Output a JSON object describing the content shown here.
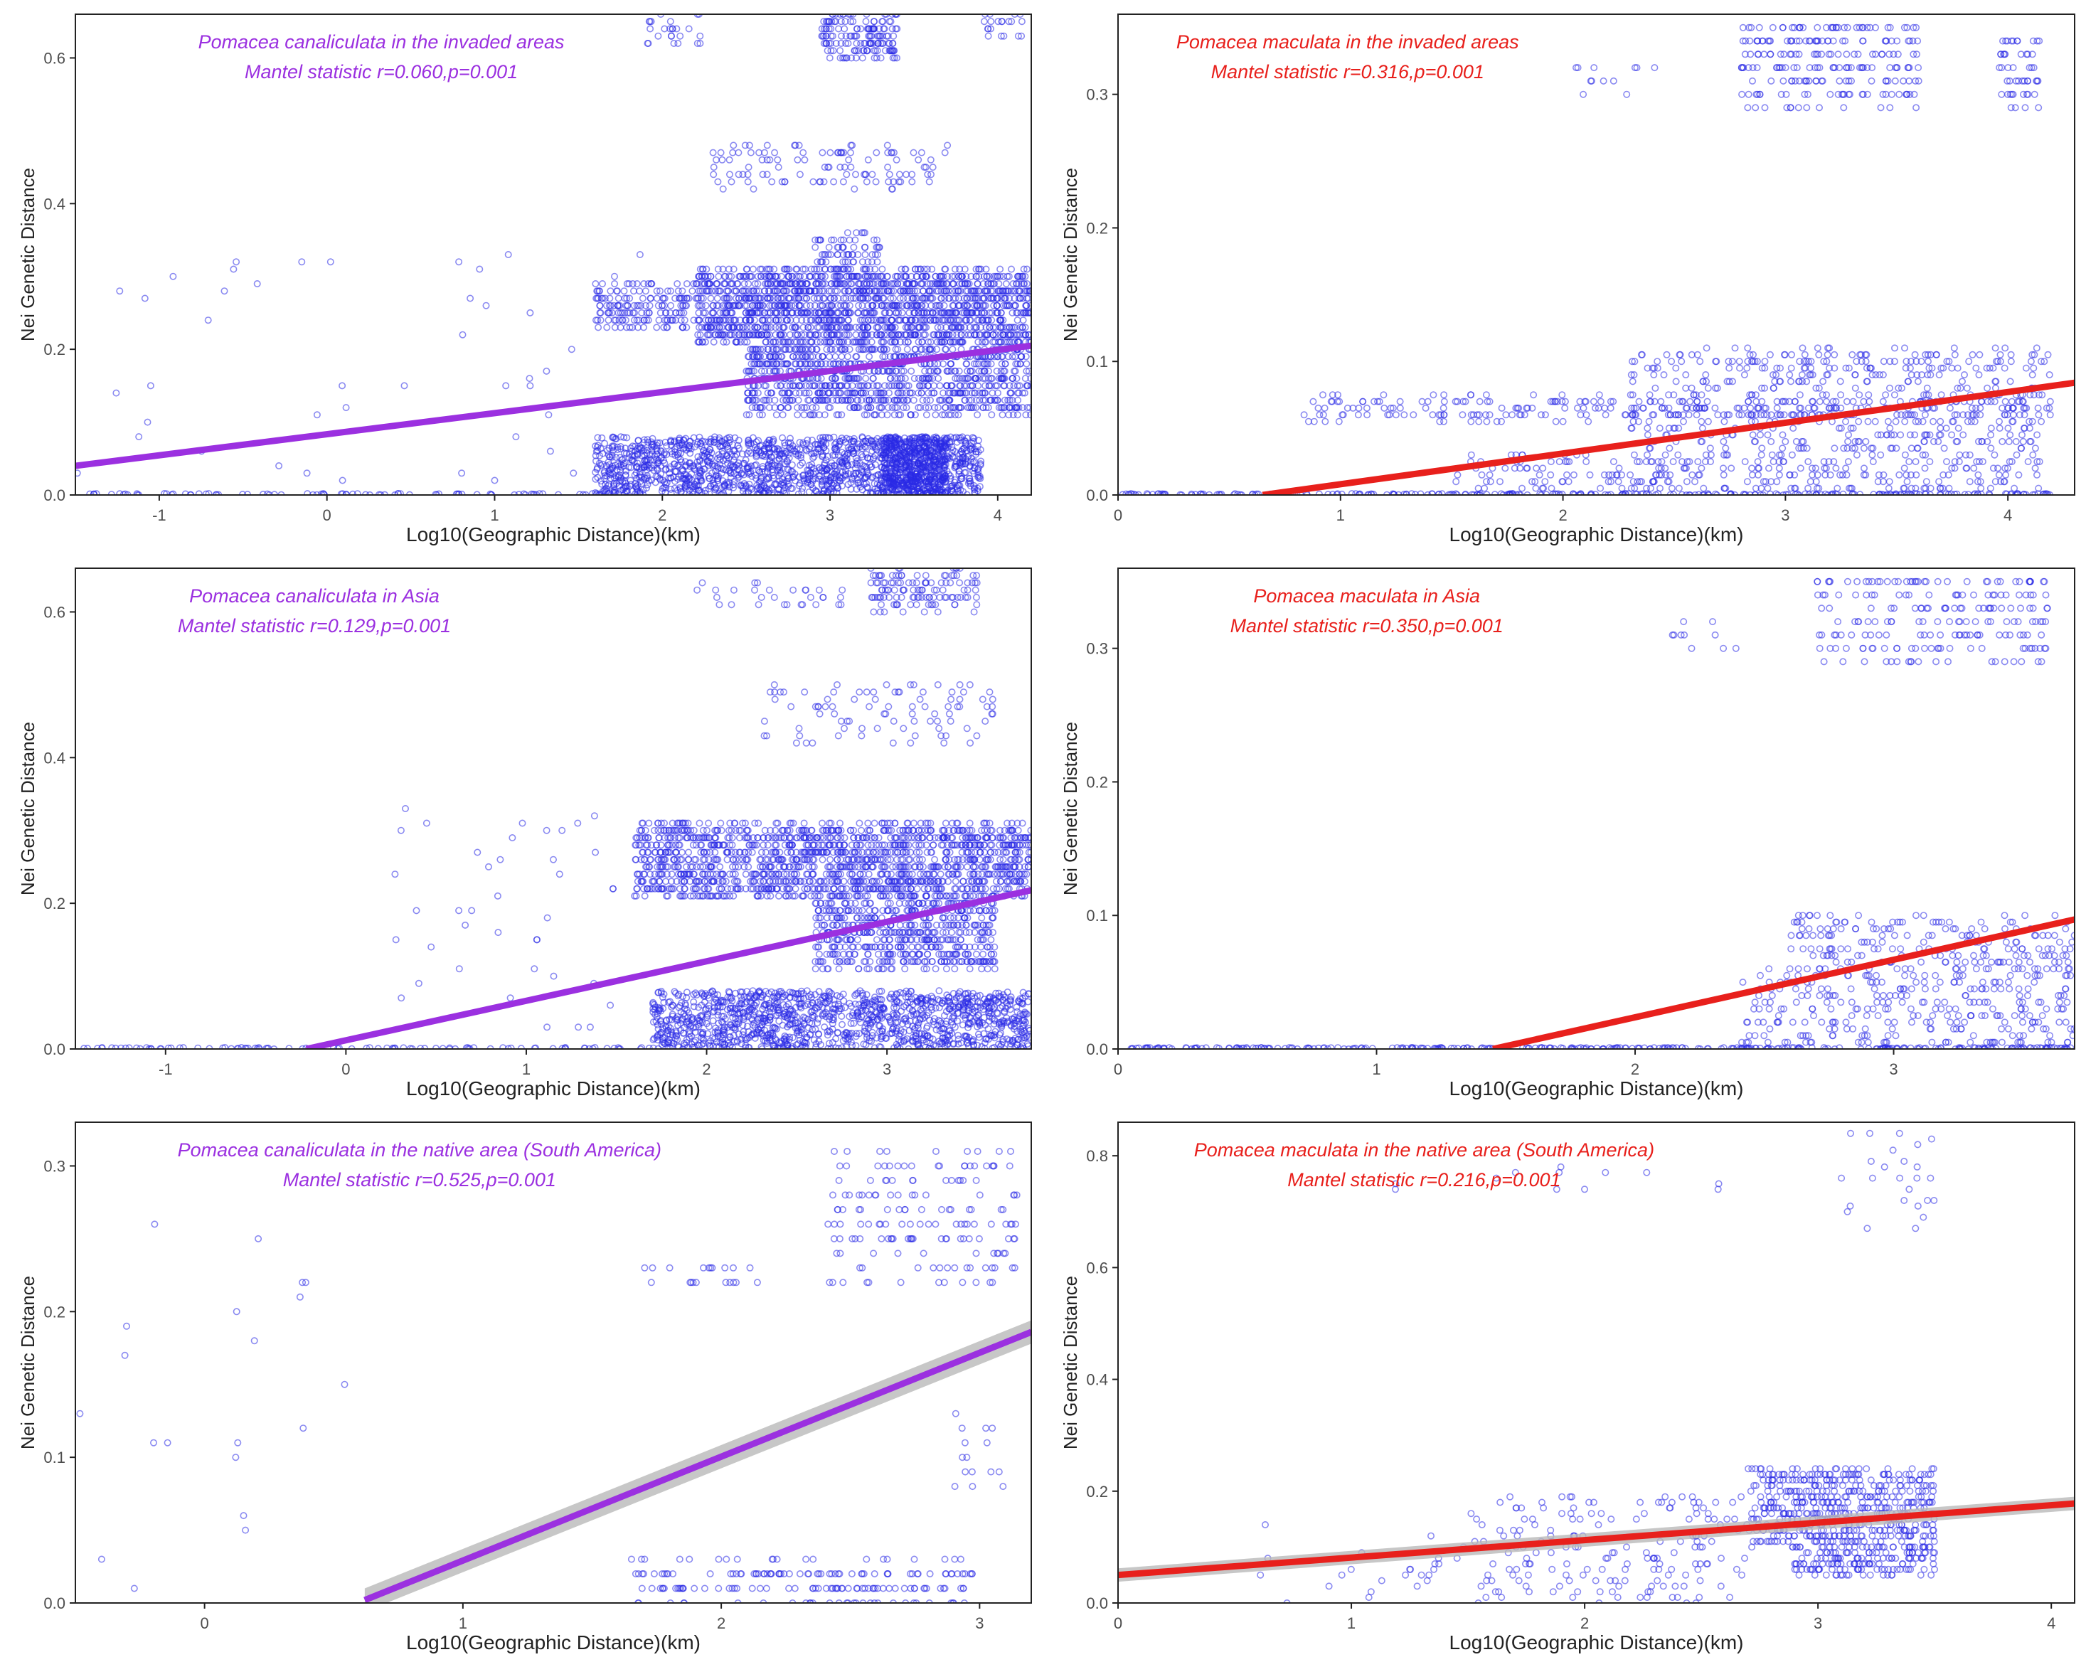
{
  "colors": {
    "purple": "#9b30e0",
    "red": "#e8201c",
    "points": "#2a2ae6",
    "band": "#b9b9b9",
    "axis": "#222222",
    "tick": "#4d4d4d"
  },
  "chart_data": [
    {
      "type": "scatter",
      "title": "Pomacea canaliculata in the invaded areas",
      "subtitle": "Mantel statistic r=0.060,p=0.001",
      "title_color": "#9b30e0",
      "xlabel": "Log10(Geographic Distance)(km)",
      "ylabel": "Nei Genetic Distance",
      "xlim": [
        -1.5,
        4.2
      ],
      "ylim": [
        0.0,
        0.66
      ],
      "xticks": [
        -1,
        0,
        1,
        2,
        3,
        4
      ],
      "yticks": [
        0.0,
        0.2,
        0.4,
        0.6
      ],
      "regression": {
        "x": [
          -1.5,
          4.2
        ],
        "y": [
          0.04,
          0.205
        ],
        "color": "#9b30e0",
        "band": 0.003
      },
      "clusters": [
        {
          "x": [
            2.95,
            3.4
          ],
          "y": [
            0.6,
            0.66
          ],
          "n": 160,
          "step": 0.01
        },
        {
          "x": [
            1.9,
            2.25
          ],
          "y": [
            0.62,
            0.66
          ],
          "n": 25,
          "step": 0.01
        },
        {
          "x": [
            3.9,
            4.15
          ],
          "y": [
            0.62,
            0.66
          ],
          "n": 20,
          "step": 0.01
        },
        {
          "x": [
            2.3,
            3.7
          ],
          "y": [
            0.42,
            0.48
          ],
          "n": 110,
          "step": 0.01
        },
        {
          "x": [
            2.2,
            4.2
          ],
          "y": [
            0.21,
            0.31
          ],
          "n": 1600,
          "step": 0.01
        },
        {
          "x": [
            1.6,
            2.2
          ],
          "y": [
            0.23,
            0.29
          ],
          "n": 160,
          "step": 0.01
        },
        {
          "x": [
            2.5,
            4.2
          ],
          "y": [
            0.11,
            0.21
          ],
          "n": 1000,
          "step": 0.01
        },
        {
          "x": [
            1.6,
            3.9
          ],
          "y": [
            0.0,
            0.08
          ],
          "n": 1500,
          "step": 0.0
        },
        {
          "x": [
            3.3,
            3.7
          ],
          "y": [
            0.0,
            0.08
          ],
          "n": 500,
          "step": 0.0
        },
        {
          "x": [
            2.9,
            3.3
          ],
          "y": [
            0.3,
            0.36
          ],
          "n": 80,
          "step": 0.01
        },
        {
          "x": [
            -1.5,
            1.9
          ],
          "y": [
            0.0,
            0.002
          ],
          "n": 90,
          "step": 0.0
        },
        {
          "x": [
            -1.5,
            1.9
          ],
          "y": [
            0.0,
            0.33
          ],
          "n": 45,
          "step": 0.01
        }
      ]
    },
    {
      "type": "scatter",
      "title": "Pomacea maculata in the invaded areas",
      "subtitle": "Mantel statistic r=0.316,p=0.001",
      "title_color": "#e8201c",
      "xlabel": "Log10(Geographic Distance)(km)",
      "ylabel": "Nei Genetic Distance",
      "xlim": [
        0.0,
        4.3
      ],
      "ylim": [
        0.0,
        0.36
      ],
      "xticks": [
        0,
        1,
        2,
        3,
        4
      ],
      "yticks": [
        0.0,
        0.1,
        0.2,
        0.3
      ],
      "regression": {
        "x": [
          0.65,
          4.3
        ],
        "y": [
          0.0,
          0.084
        ],
        "color": "#e8201c",
        "band": 0.002
      },
      "clusters": [
        {
          "x": [
            2.8,
            3.6
          ],
          "y": [
            0.29,
            0.355
          ],
          "n": 220,
          "step": 0.01
        },
        {
          "x": [
            3.95,
            4.15
          ],
          "y": [
            0.29,
            0.345
          ],
          "n": 50,
          "step": 0.01
        },
        {
          "x": [
            1.95,
            2.5
          ],
          "y": [
            0.3,
            0.32
          ],
          "n": 12,
          "step": 0.01
        },
        {
          "x": [
            0.8,
            4.2
          ],
          "y": [
            0.055,
            0.075
          ],
          "n": 260,
          "step": 0.005
        },
        {
          "x": [
            2.3,
            4.2
          ],
          "y": [
            0.0,
            0.11
          ],
          "n": 700,
          "step": 0.005
        },
        {
          "x": [
            0.0,
            4.2
          ],
          "y": [
            0.0,
            0.001
          ],
          "n": 260,
          "step": 0.0
        },
        {
          "x": [
            1.5,
            2.5
          ],
          "y": [
            0.0,
            0.03
          ],
          "n": 90,
          "step": 0.005
        }
      ]
    },
    {
      "type": "scatter",
      "title": "Pomacea canaliculata in Asia",
      "subtitle": "Mantel statistic r=0.129,p=0.001",
      "title_color": "#9b30e0",
      "xlabel": "Log10(Geographic Distance)(km)",
      "ylabel": "Nei Genetic Distance",
      "xlim": [
        -1.5,
        3.8
      ],
      "ylim": [
        0.0,
        0.66
      ],
      "xticks": [
        -1,
        0,
        1,
        2,
        3
      ],
      "yticks": [
        0.0,
        0.2,
        0.4,
        0.6
      ],
      "regression": {
        "x": [
          -0.22,
          3.8
        ],
        "y": [
          0.0,
          0.218
        ],
        "color": "#9b30e0",
        "band": 0.003
      },
      "clusters": [
        {
          "x": [
            2.9,
            3.5
          ],
          "y": [
            0.6,
            0.66
          ],
          "n": 120,
          "step": 0.01
        },
        {
          "x": [
            1.9,
            2.8
          ],
          "y": [
            0.6,
            0.64
          ],
          "n": 30,
          "step": 0.01
        },
        {
          "x": [
            2.3,
            3.6
          ],
          "y": [
            0.42,
            0.5
          ],
          "n": 90,
          "step": 0.01
        },
        {
          "x": [
            1.6,
            3.8
          ],
          "y": [
            0.21,
            0.31
          ],
          "n": 1500,
          "step": 0.01
        },
        {
          "x": [
            2.6,
            3.6
          ],
          "y": [
            0.11,
            0.21
          ],
          "n": 600,
          "step": 0.01
        },
        {
          "x": [
            1.7,
            3.8
          ],
          "y": [
            0.0,
            0.08
          ],
          "n": 1300,
          "step": 0.0
        },
        {
          "x": [
            -1.5,
            1.8
          ],
          "y": [
            0.0,
            0.002
          ],
          "n": 100,
          "step": 0.0
        },
        {
          "x": [
            0.2,
            1.5
          ],
          "y": [
            0.0,
            0.33
          ],
          "n": 40,
          "step": 0.01
        }
      ]
    },
    {
      "type": "scatter",
      "title": "Pomacea maculata in Asia",
      "subtitle": "Mantel statistic r=0.350,p=0.001",
      "title_color": "#e8201c",
      "xlabel": "Log10(Geographic Distance)(km)",
      "ylabel": "Nei Genetic Distance",
      "xlim": [
        0.0,
        3.7
      ],
      "ylim": [
        0.0,
        0.36
      ],
      "xticks": [
        0,
        1,
        2,
        3
      ],
      "yticks": [
        0.0,
        0.1,
        0.2,
        0.3
      ],
      "regression": {
        "x": [
          1.45,
          3.7
        ],
        "y": [
          0.0,
          0.097
        ],
        "color": "#e8201c",
        "band": 0.002
      },
      "clusters": [
        {
          "x": [
            2.7,
            3.6
          ],
          "y": [
            0.29,
            0.355
          ],
          "n": 200,
          "step": 0.01
        },
        {
          "x": [
            1.9,
            2.5
          ],
          "y": [
            0.3,
            0.32
          ],
          "n": 10,
          "step": 0.01
        },
        {
          "x": [
            2.6,
            3.7
          ],
          "y": [
            0.055,
            0.1
          ],
          "n": 200,
          "step": 0.005
        },
        {
          "x": [
            2.4,
            3.7
          ],
          "y": [
            0.0,
            0.06
          ],
          "n": 300,
          "step": 0.005
        },
        {
          "x": [
            0.0,
            3.7
          ],
          "y": [
            0.0,
            0.001
          ],
          "n": 300,
          "step": 0.0
        }
      ]
    },
    {
      "type": "scatter",
      "title": "Pomacea canaliculata in the native area (South America)",
      "subtitle": "Mantel statistic r=0.525,p=0.001",
      "title_color": "#9b30e0",
      "xlabel": "Log10(Geographic Distance)(km)",
      "ylabel": "Nei Genetic Distance",
      "xlim": [
        -0.5,
        3.2
      ],
      "ylim": [
        0.0,
        0.33
      ],
      "xticks": [
        0,
        1,
        2,
        3
      ],
      "yticks": [
        0.0,
        0.1,
        0.2,
        0.3
      ],
      "regression": {
        "x": [
          0.62,
          3.2
        ],
        "y": [
          0.002,
          0.186
        ],
        "color": "#9b30e0",
        "band": 0.008
      },
      "clusters": [
        {
          "x": [
            2.4,
            3.15
          ],
          "y": [
            0.22,
            0.31
          ],
          "n": 160,
          "step": 0.01
        },
        {
          "x": [
            1.7,
            2.2
          ],
          "y": [
            0.215,
            0.235
          ],
          "n": 20,
          "step": 0.01
        },
        {
          "x": [
            1.65,
            3.0
          ],
          "y": [
            0.0,
            0.03
          ],
          "n": 180,
          "step": 0.01
        },
        {
          "x": [
            2.9,
            3.1
          ],
          "y": [
            0.08,
            0.14
          ],
          "n": 15,
          "step": 0.01
        },
        {
          "x": [
            -0.5,
            0.6
          ],
          "y": [
            0.0,
            0.26
          ],
          "n": 20,
          "step": 0.01
        }
      ]
    },
    {
      "type": "scatter",
      "title": "Pomacea maculata in the native area (South America)",
      "subtitle": "Mantel statistic r=0.216,p=0.001",
      "title_color": "#e8201c",
      "xlabel": "Log10(Geographic Distance)(km)",
      "ylabel": "Nei Genetic Distance",
      "xlim": [
        0.0,
        4.1
      ],
      "ylim": [
        0.0,
        0.86
      ],
      "xticks": [
        0,
        1,
        2,
        3,
        4
      ],
      "yticks": [
        0.0,
        0.2,
        0.4,
        0.6,
        0.8
      ],
      "regression": {
        "x": [
          0.0,
          4.1
        ],
        "y": [
          0.05,
          0.178
        ],
        "color": "#e8201c",
        "band": 0.012
      },
      "clusters": [
        {
          "x": [
            2.7,
            3.5
          ],
          "y": [
            0.1,
            0.24
          ],
          "n": 500,
          "step": 0.01
        },
        {
          "x": [
            2.9,
            3.5
          ],
          "y": [
            0.05,
            0.1
          ],
          "n": 150,
          "step": 0.01
        },
        {
          "x": [
            1.5,
            2.7
          ],
          "y": [
            0.0,
            0.2
          ],
          "n": 180,
          "step": 0.01
        },
        {
          "x": [
            3.1,
            3.5
          ],
          "y": [
            0.65,
            0.85
          ],
          "n": 25,
          "step": 0.01
        },
        {
          "x": [
            1.0,
            2.6
          ],
          "y": [
            0.74,
            0.78
          ],
          "n": 12,
          "step": 0.01
        },
        {
          "x": [
            0.5,
            1.5
          ],
          "y": [
            0.0,
            0.15
          ],
          "n": 25,
          "step": 0.01
        }
      ]
    }
  ]
}
